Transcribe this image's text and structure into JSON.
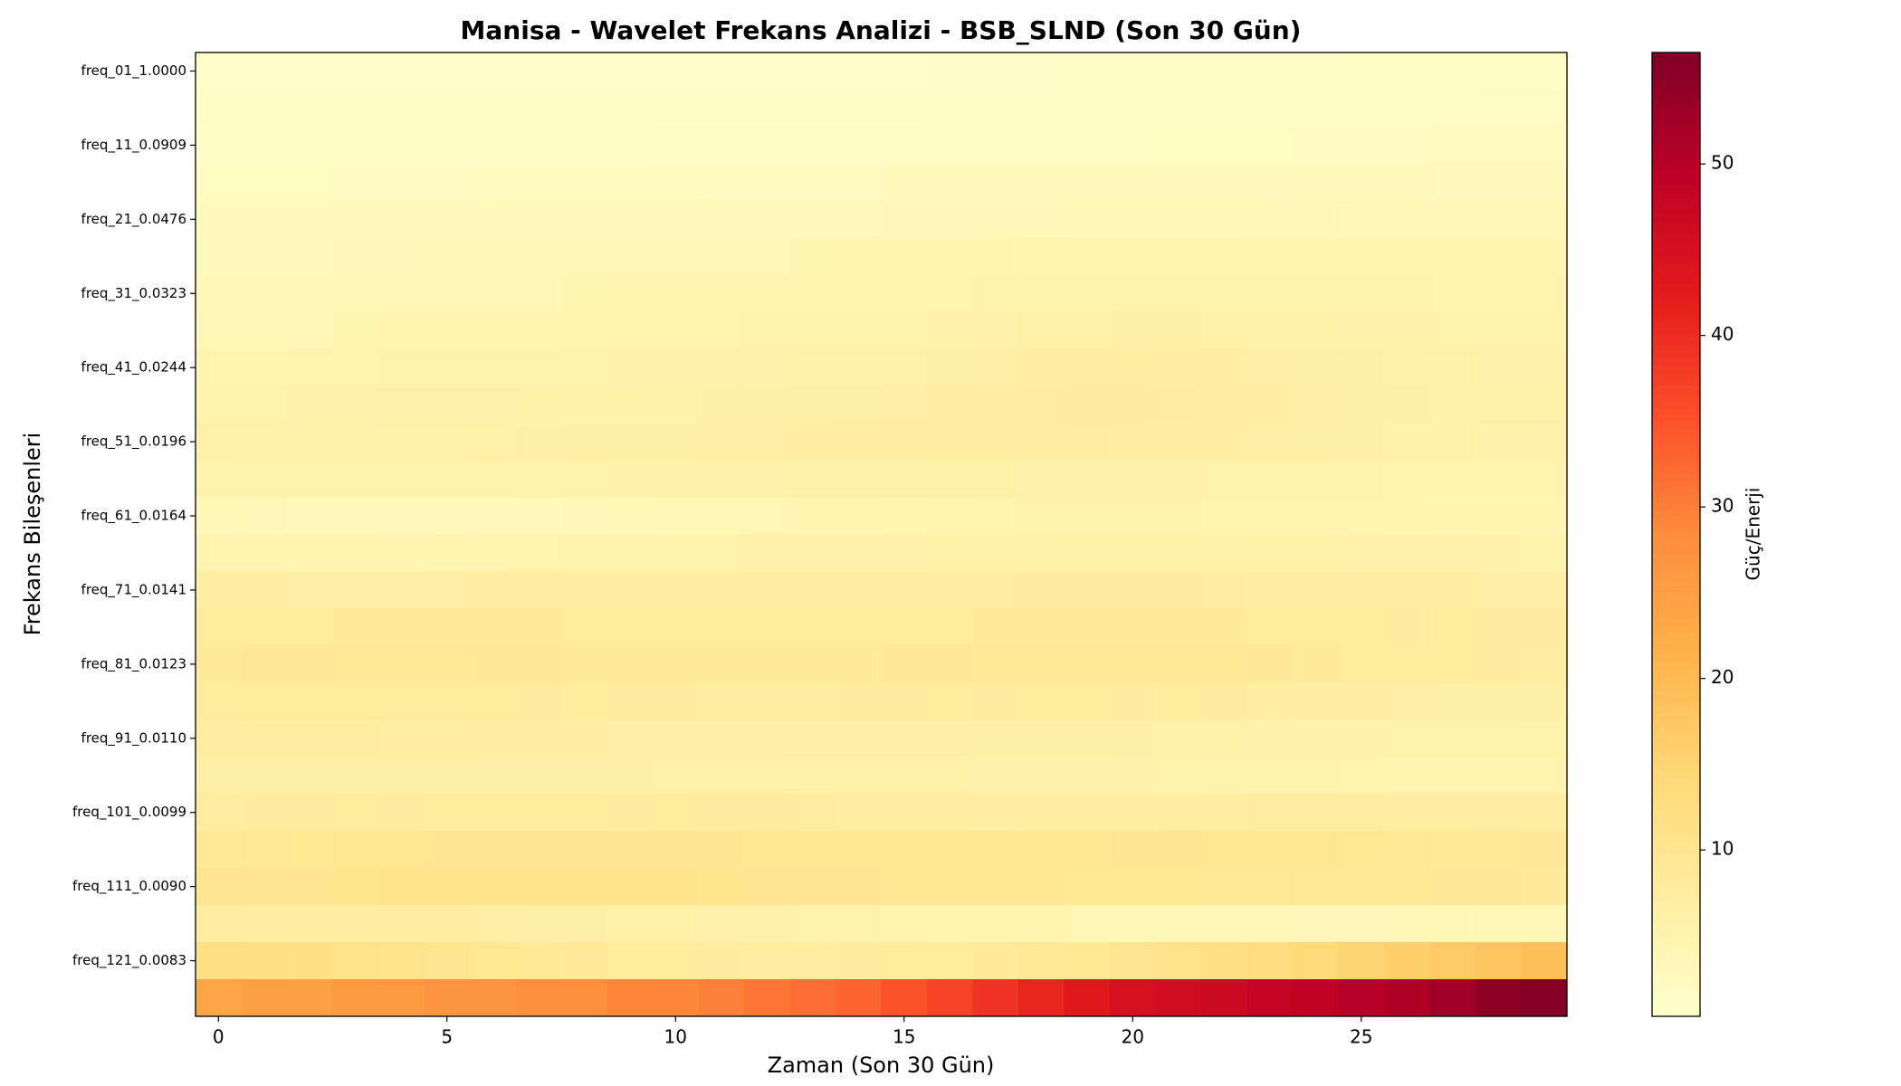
{
  "chart_data": {
    "type": "heatmap",
    "title": "Manisa - Wavelet Frekans Analizi - BSB_SLND (Son 30 Gün)",
    "x_label": "Zaman (Son 30 Gün)",
    "y_label": "Frekans Bileşenleri",
    "colorbar_label": "Güç/Enerji",
    "colormap": "YlOrRd",
    "x": [
      0,
      1,
      2,
      3,
      4,
      5,
      6,
      7,
      8,
      9,
      10,
      11,
      12,
      13,
      14,
      15,
      16,
      17,
      18,
      19,
      20,
      21,
      22,
      23,
      24,
      25,
      26,
      27,
      28,
      29
    ],
    "xlim": [
      -0.5,
      29.5
    ],
    "xticks": [
      0,
      5,
      10,
      15,
      20,
      25
    ],
    "categories": [
      "freq_01_1.0000",
      null,
      "freq_11_0.0909",
      null,
      "freq_21_0.0476",
      null,
      "freq_31_0.0323",
      null,
      "freq_41_0.0244",
      null,
      "freq_51_0.0196",
      null,
      "freq_61_0.0164",
      null,
      "freq_71_0.0141",
      null,
      "freq_81_0.0123",
      null,
      "freq_91_0.0110",
      null,
      "freq_101_0.0099",
      null,
      "freq_111_0.0090",
      null,
      "freq_121_0.0083",
      null
    ],
    "zlim": [
      0.3,
      56.5
    ],
    "zticks": [
      10,
      20,
      30,
      40,
      50
    ],
    "values": [
      [
        1.0,
        1.0,
        1.0,
        1.0,
        1.0,
        1.0,
        1.0,
        1.0,
        1.0,
        1.0,
        1.0,
        1.0,
        1.0,
        1.0,
        1.0,
        1.0,
        1.1,
        1.1,
        1.1,
        1.2,
        1.2,
        1.2,
        1.3,
        1.3,
        1.3,
        1.4,
        1.4,
        1.4,
        1.5,
        1.5
      ],
      [
        1.2,
        1.2,
        1.2,
        1.2,
        1.2,
        1.2,
        1.2,
        1.2,
        1.2,
        1.2,
        1.2,
        1.2,
        1.2,
        1.2,
        1.2,
        1.2,
        1.3,
        1.3,
        1.3,
        1.4,
        1.4,
        1.4,
        1.5,
        1.5,
        1.5,
        1.6,
        1.6,
        1.6,
        1.7,
        1.7
      ],
      [
        1.5,
        1.5,
        1.5,
        1.5,
        1.5,
        1.6,
        1.6,
        1.6,
        1.6,
        1.6,
        1.7,
        1.7,
        1.7,
        1.7,
        1.7,
        1.8,
        1.8,
        1.8,
        1.9,
        1.9,
        1.9,
        2.0,
        2.0,
        2.0,
        2.1,
        2.1,
        2.1,
        2.2,
        2.2,
        2.2
      ],
      [
        2.0,
        2.0,
        2.0,
        2.1,
        2.1,
        2.1,
        2.2,
        2.2,
        2.2,
        2.3,
        2.3,
        2.3,
        2.4,
        2.4,
        2.4,
        2.5,
        2.5,
        2.5,
        2.6,
        2.6,
        2.6,
        2.7,
        2.7,
        2.7,
        2.8,
        2.8,
        2.8,
        2.9,
        2.9,
        2.9
      ],
      [
        2.5,
        2.6,
        2.6,
        2.7,
        2.7,
        2.8,
        2.8,
        2.9,
        2.9,
        3.0,
        3.0,
        3.1,
        3.1,
        3.2,
        3.2,
        3.3,
        3.3,
        3.4,
        3.4,
        3.5,
        3.5,
        3.6,
        3.6,
        3.7,
        3.7,
        3.8,
        3.8,
        3.9,
        3.9,
        4.0
      ],
      [
        3.0,
        3.1,
        3.2,
        3.3,
        3.4,
        3.5,
        3.6,
        3.7,
        3.8,
        3.9,
        4.0,
        4.1,
        4.2,
        4.3,
        4.4,
        4.5,
        4.6,
        4.7,
        4.8,
        4.9,
        5.0,
        5.0,
        5.0,
        5.0,
        4.9,
        4.8,
        4.7,
        4.6,
        4.5,
        4.4
      ],
      [
        3.5,
        3.6,
        3.7,
        3.8,
        3.9,
        4.0,
        4.1,
        4.2,
        4.3,
        4.4,
        4.5,
        4.6,
        4.7,
        4.8,
        4.9,
        5.0,
        5.1,
        5.2,
        5.3,
        5.4,
        5.5,
        5.5,
        5.5,
        5.5,
        5.4,
        5.3,
        5.2,
        5.1,
        5.0,
        5.0
      ],
      [
        4.0,
        4.1,
        4.2,
        4.3,
        4.4,
        4.5,
        4.6,
        4.7,
        4.8,
        4.9,
        5.0,
        5.1,
        5.2,
        5.3,
        5.4,
        5.5,
        5.7,
        5.9,
        6.1,
        6.3,
        6.4,
        6.4,
        6.3,
        6.2,
        6.0,
        5.8,
        5.6,
        5.5,
        5.4,
        5.4
      ],
      [
        5.0,
        5.0,
        5.1,
        5.1,
        5.2,
        5.2,
        5.3,
        5.4,
        5.5,
        5.6,
        5.7,
        5.8,
        5.9,
        6.0,
        6.1,
        6.3,
        6.5,
        6.8,
        7.0,
        7.2,
        7.3,
        7.2,
        7.0,
        6.8,
        6.6,
        6.4,
        6.2,
        6.0,
        5.9,
        5.8
      ],
      [
        5.5,
        5.5,
        5.6,
        5.6,
        5.7,
        5.8,
        5.9,
        6.0,
        6.1,
        6.2,
        6.3,
        6.4,
        6.5,
        6.6,
        6.7,
        6.9,
        7.1,
        7.3,
        7.5,
        7.6,
        7.6,
        7.5,
        7.3,
        7.1,
        6.9,
        6.7,
        6.5,
        6.3,
        6.2,
        6.1
      ],
      [
        6.0,
        6.0,
        6.0,
        6.1,
        6.1,
        6.2,
        6.3,
        6.4,
        6.5,
        6.6,
        6.7,
        6.8,
        6.9,
        7.0,
        7.1,
        7.2,
        7.3,
        7.4,
        7.5,
        7.5,
        7.4,
        7.2,
        7.0,
        6.8,
        6.6,
        6.4,
        6.2,
        6.0,
        5.9,
        5.8
      ],
      [
        5.5,
        5.4,
        5.3,
        5.2,
        5.2,
        5.2,
        5.3,
        5.4,
        5.5,
        5.6,
        5.7,
        5.8,
        5.9,
        6.0,
        6.0,
        6.0,
        6.0,
        6.0,
        5.9,
        5.8,
        5.7,
        5.6,
        5.5,
        5.4,
        5.3,
        5.2,
        5.1,
        5.0,
        5.0,
        5.0
      ],
      [
        3.5,
        3.3,
        3.2,
        3.1,
        3.0,
        3.0,
        3.1,
        3.2,
        3.4,
        3.6,
        3.8,
        4.0,
        4.2,
        4.4,
        4.6,
        4.8,
        5.0,
        5.1,
        5.2,
        5.2,
        5.2,
        5.2,
        5.1,
        5.0,
        4.9,
        4.8,
        4.7,
        4.6,
        4.5,
        4.5
      ],
      [
        5.0,
        4.9,
        4.8,
        4.8,
        4.8,
        4.9,
        5.0,
        5.1,
        5.2,
        5.3,
        5.4,
        5.5,
        5.6,
        5.7,
        5.8,
        5.9,
        6.0,
        6.1,
        6.2,
        6.3,
        6.3,
        6.3,
        6.2,
        6.1,
        6.0,
        5.9,
        5.8,
        5.7,
        5.6,
        5.5
      ],
      [
        7.0,
        7.0,
        6.9,
        6.9,
        6.9,
        6.9,
        7.0,
        7.0,
        7.1,
        7.1,
        7.2,
        7.2,
        7.3,
        7.3,
        7.4,
        7.4,
        7.5,
        7.5,
        7.6,
        7.6,
        7.6,
        7.6,
        7.5,
        7.4,
        7.3,
        7.2,
        7.1,
        7.0,
        6.9,
        6.8
      ],
      [
        8.0,
        8.1,
        8.2,
        8.3,
        8.3,
        8.3,
        8.3,
        8.3,
        8.2,
        8.2,
        8.1,
        8.1,
        8.0,
        8.0,
        8.0,
        8.1,
        8.2,
        8.3,
        8.4,
        8.5,
        8.5,
        8.4,
        8.3,
        8.2,
        8.1,
        8.0,
        7.9,
        7.8,
        7.7,
        7.6
      ],
      [
        8.5,
        8.6,
        8.7,
        8.8,
        8.8,
        8.8,
        8.7,
        8.6,
        8.5,
        8.4,
        8.3,
        8.3,
        8.3,
        8.4,
        8.5,
        8.6,
        8.7,
        8.8,
        8.9,
        9.0,
        9.0,
        8.9,
        8.8,
        8.6,
        8.4,
        8.2,
        8.0,
        7.8,
        7.6,
        7.5
      ],
      [
        8.0,
        8.1,
        8.2,
        8.2,
        8.2,
        8.1,
        8.0,
        7.9,
        7.8,
        7.7,
        7.6,
        7.5,
        7.5,
        7.5,
        7.6,
        7.7,
        7.8,
        7.9,
        8.0,
        8.0,
        7.9,
        7.8,
        7.6,
        7.4,
        7.2,
        7.0,
        6.8,
        6.6,
        6.5,
        6.4
      ],
      [
        7.5,
        7.5,
        7.5,
        7.5,
        7.4,
        7.3,
        7.2,
        7.1,
        7.0,
        6.9,
        6.8,
        6.8,
        6.8,
        6.8,
        6.8,
        6.8,
        6.8,
        6.7,
        6.6,
        6.5,
        6.4,
        6.2,
        6.0,
        5.8,
        5.7,
        5.6,
        5.5,
        5.5,
        5.5,
        5.5
      ],
      [
        6.5,
        6.5,
        6.5,
        6.5,
        6.5,
        6.5,
        6.4,
        6.4,
        6.4,
        6.4,
        6.3,
        6.3,
        6.3,
        6.2,
        6.2,
        6.1,
        6.0,
        5.9,
        5.8,
        5.7,
        5.6,
        5.5,
        5.4,
        5.3,
        5.2,
        5.1,
        5.0,
        5.0,
        5.0,
        5.0
      ],
      [
        7.5,
        7.6,
        7.7,
        7.8,
        7.9,
        8.0,
        8.0,
        8.0,
        8.0,
        7.9,
        7.8,
        7.7,
        7.6,
        7.5,
        7.4,
        7.3,
        7.2,
        7.1,
        7.1,
        7.1,
        7.2,
        7.3,
        7.4,
        7.5,
        7.5,
        7.5,
        7.4,
        7.3,
        7.2,
        7.1
      ],
      [
        9.0,
        9.2,
        9.4,
        9.6,
        9.8,
        10.0,
        10.1,
        10.2,
        10.2,
        10.2,
        10.1,
        10.0,
        9.9,
        9.8,
        9.7,
        9.6,
        9.6,
        9.7,
        9.8,
        9.9,
        10.0,
        10.0,
        9.9,
        9.8,
        9.6,
        9.4,
        9.2,
        9.0,
        8.8,
        8.6
      ],
      [
        10.0,
        10.1,
        10.2,
        10.3,
        10.4,
        10.5,
        10.6,
        10.6,
        10.6,
        10.5,
        10.4,
        10.3,
        10.2,
        10.1,
        10.0,
        9.9,
        9.8,
        9.7,
        9.6,
        9.5,
        9.4,
        9.3,
        9.2,
        9.1,
        9.0,
        8.9,
        8.8,
        8.7,
        8.6,
        8.5
      ],
      [
        7.5,
        7.4,
        7.3,
        7.2,
        7.1,
        7.0,
        6.8,
        6.6,
        6.4,
        6.2,
        6.0,
        5.8,
        5.6,
        5.4,
        5.2,
        5.0,
        4.8,
        4.6,
        4.4,
        4.2,
        4.0,
        3.8,
        3.6,
        3.5,
        3.4,
        3.4,
        3.5,
        3.6,
        3.8,
        4.0
      ],
      [
        12.0,
        12.0,
        11.5,
        11.0,
        10.5,
        10.0,
        9.5,
        9.0,
        8.5,
        8.0,
        7.8,
        7.6,
        7.5,
        7.5,
        7.6,
        7.8,
        8.0,
        8.5,
        9.0,
        9.5,
        10.0,
        11.0,
        12.0,
        13.0,
        14.0,
        15.0,
        16.0,
        17.0,
        18.0,
        19.0
      ],
      [
        24,
        25,
        25,
        26,
        26,
        27,
        27,
        28,
        28,
        29,
        29,
        30,
        31,
        32,
        33,
        35,
        37,
        39,
        41,
        43,
        45,
        46,
        47,
        48,
        49,
        50,
        51,
        53,
        55,
        56
      ]
    ]
  }
}
